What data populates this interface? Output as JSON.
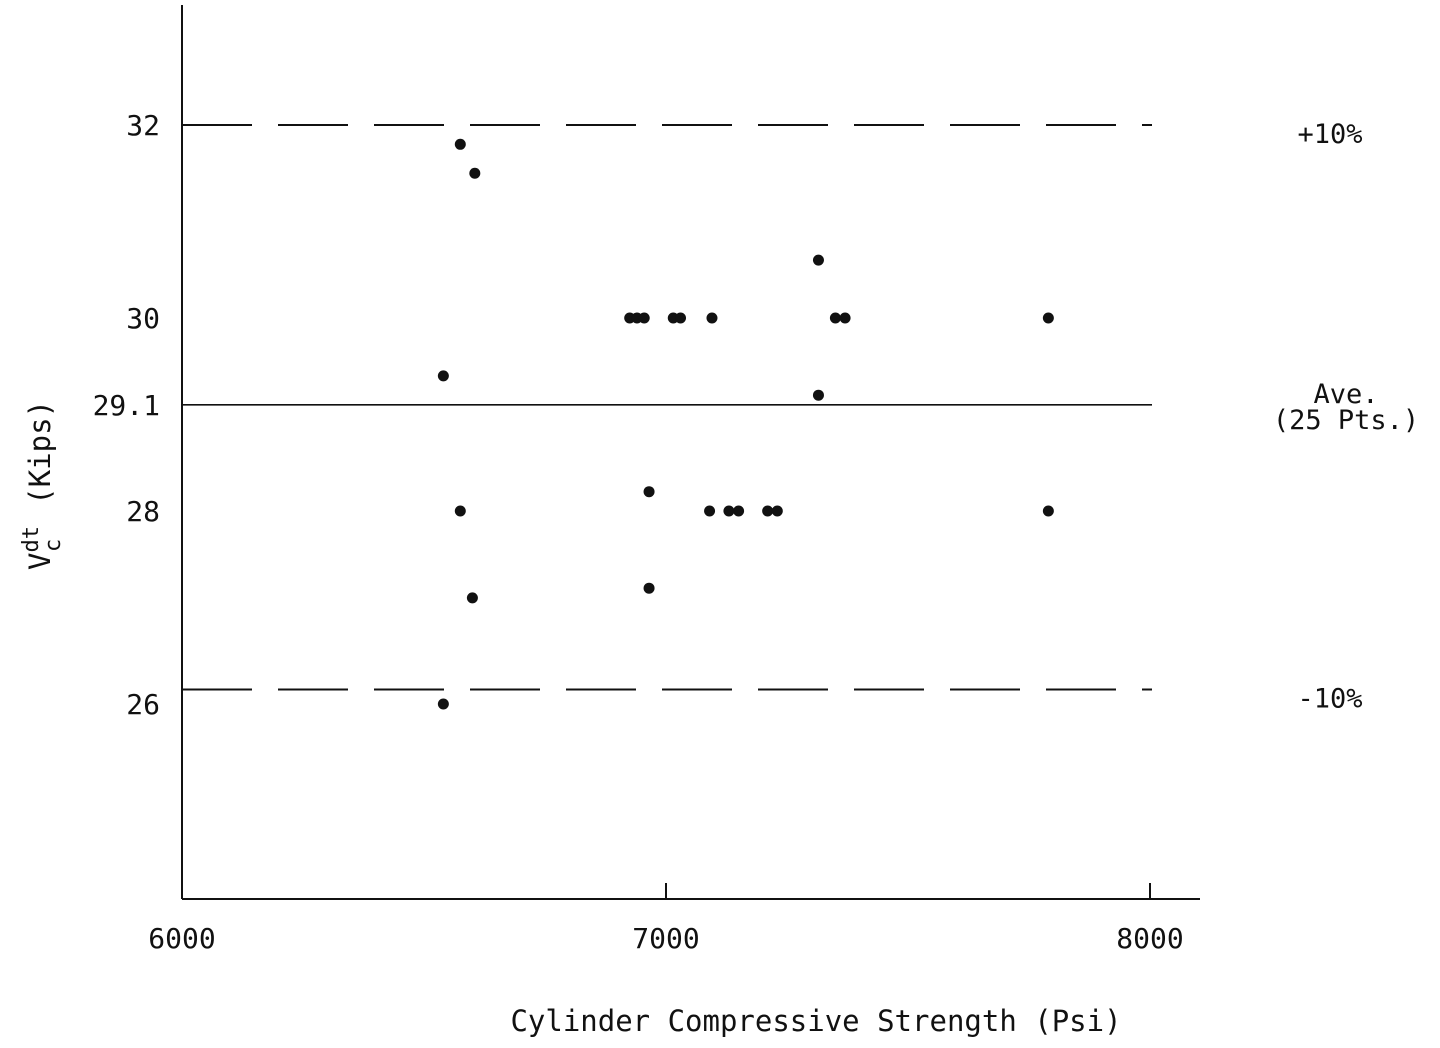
{
  "chart_data": {
    "type": "scatter",
    "title": "",
    "xlabel": "Cylinder Compressive Strength (Psi)",
    "ylabel": {
      "main": "V",
      "superscript": "dt",
      "subscript": "c",
      "units": "(Kips)"
    },
    "xlim": [
      6000,
      8100
    ],
    "ylim": [
      24,
      33.2
    ],
    "x_ticks": [
      6000,
      7000,
      8000
    ],
    "x_tick_labels": [
      "6000",
      "7000",
      "8000"
    ],
    "y_ticks": [
      26,
      28,
      29.1,
      30,
      32
    ],
    "y_tick_labels": [
      "26",
      "28",
      "29.1",
      "30",
      "32"
    ],
    "grid": false,
    "reference_lines": [
      {
        "y": 32.0,
        "style": "dashed",
        "label": "+10%"
      },
      {
        "y": 29.1,
        "style": "solid",
        "label": [
          "Ave.",
          "(25 Pts.)"
        ]
      },
      {
        "y": 26.15,
        "style": "dashed",
        "label": "-10%"
      }
    ],
    "series": [
      {
        "points": [
          [
            6575,
            31.8
          ],
          [
            6605,
            31.5
          ],
          [
            6540,
            29.4
          ],
          [
            6575,
            28.0
          ],
          [
            6600,
            27.1
          ],
          [
            6540,
            26.0
          ],
          [
            6925,
            30.0
          ],
          [
            6940,
            30.0
          ],
          [
            6955,
            30.0
          ],
          [
            7015,
            30.0
          ],
          [
            7030,
            30.0
          ],
          [
            7095,
            30.0
          ],
          [
            6965,
            28.2
          ],
          [
            6965,
            27.2
          ],
          [
            7090,
            28.0
          ],
          [
            7130,
            28.0
          ],
          [
            7150,
            28.0
          ],
          [
            7210,
            28.0
          ],
          [
            7230,
            28.0
          ],
          [
            7315,
            30.6
          ],
          [
            7315,
            29.2
          ],
          [
            7350,
            30.0
          ],
          [
            7370,
            30.0
          ],
          [
            7790,
            30.0
          ],
          [
            7790,
            28.0
          ]
        ]
      }
    ],
    "colors": {
      "ink": "#111111"
    }
  }
}
